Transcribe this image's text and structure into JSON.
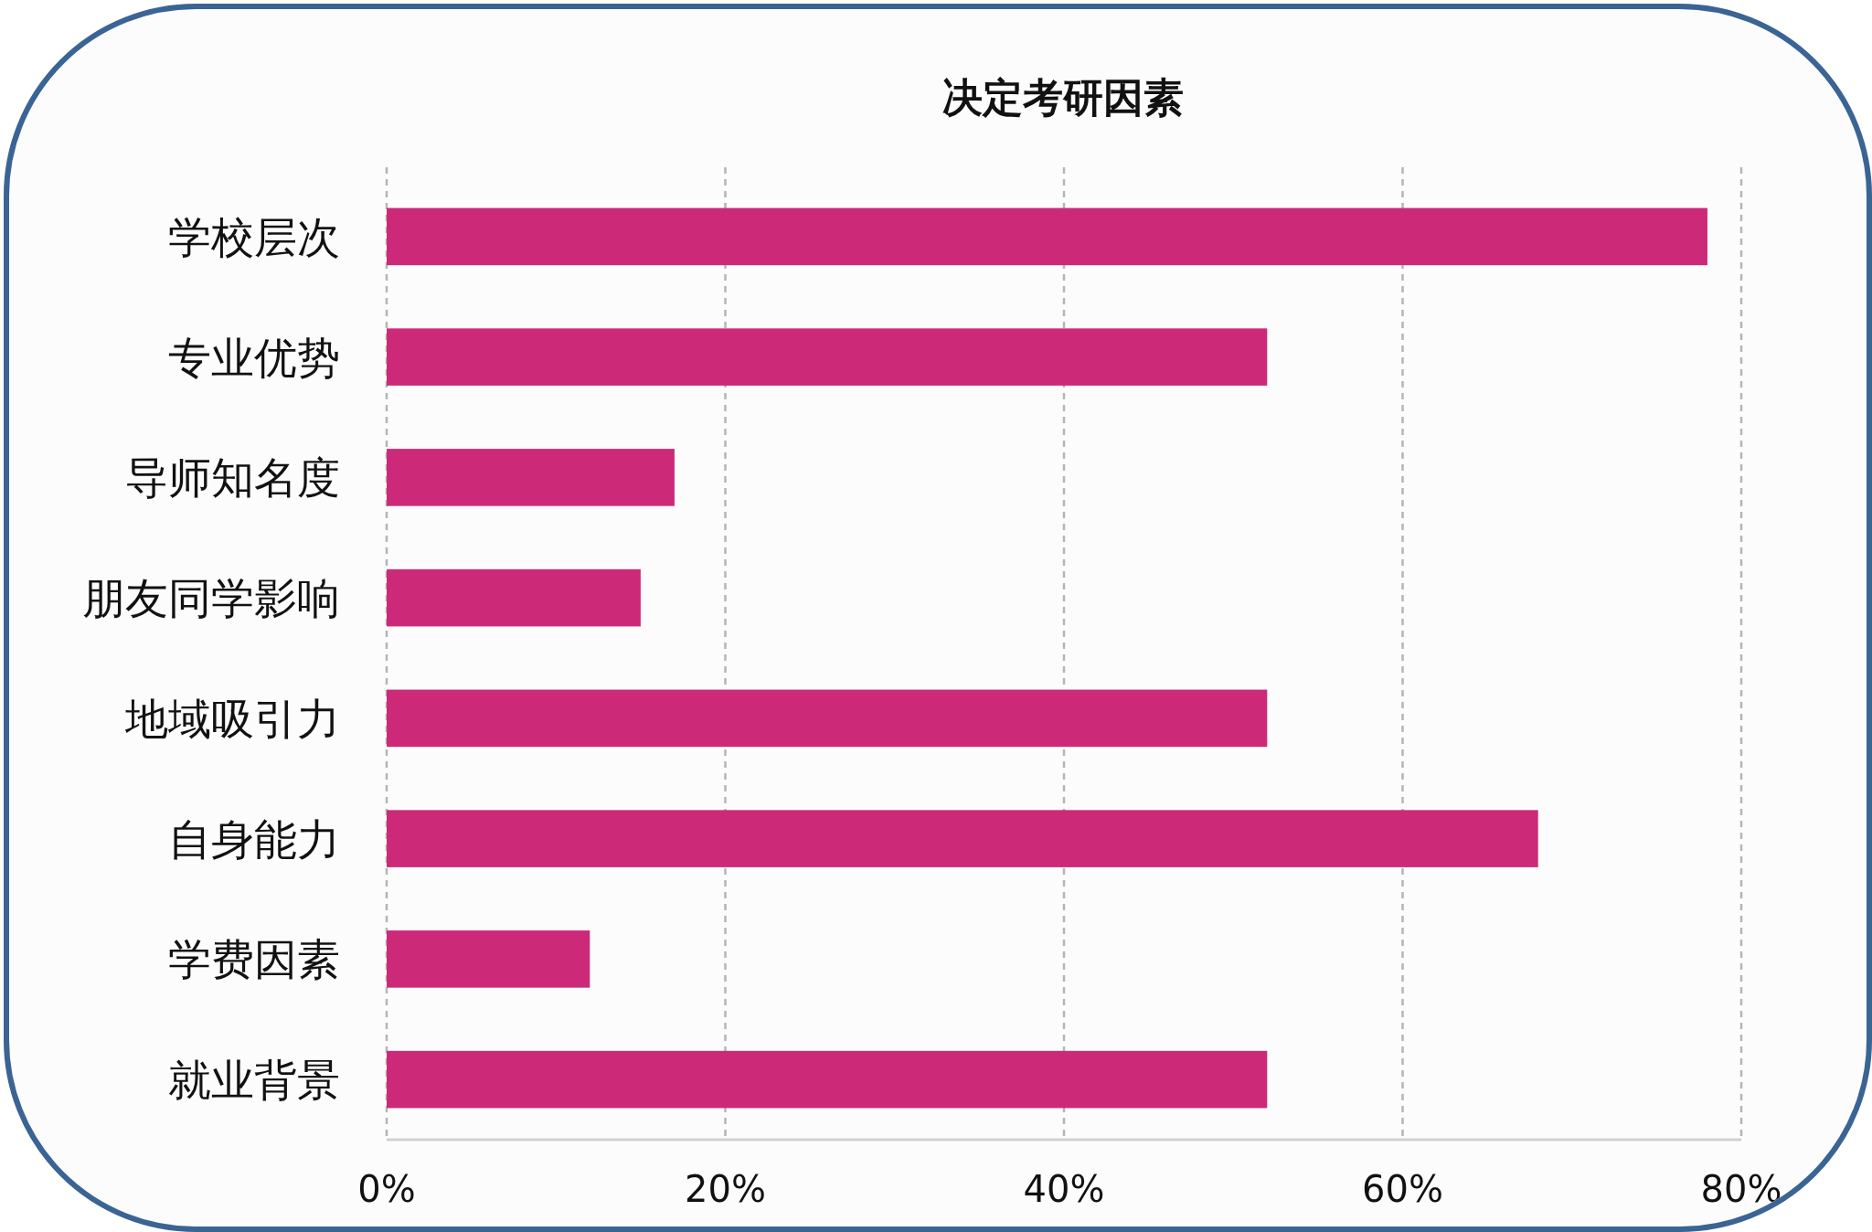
{
  "chart_data": {
    "type": "bar",
    "orientation": "horizontal",
    "title": "决定考研因素",
    "categories": [
      "学校层次",
      "专业优势",
      "导师知名度",
      "朋友同学影响",
      "地域吸引力",
      "自身能力",
      "学费因素",
      "就业背景"
    ],
    "values": [
      78,
      52,
      17,
      15,
      52,
      68,
      12,
      52
    ],
    "color": "#cc2a78",
    "xlim": [
      0,
      80
    ],
    "xticks": [
      {
        "value": 0,
        "label": "0%"
      },
      {
        "value": 20,
        "label": "20%"
      },
      {
        "value": 40,
        "label": "40%"
      },
      {
        "value": 60,
        "label": "60%"
      },
      {
        "value": 80,
        "label": "80%"
      }
    ],
    "grid": "x"
  }
}
